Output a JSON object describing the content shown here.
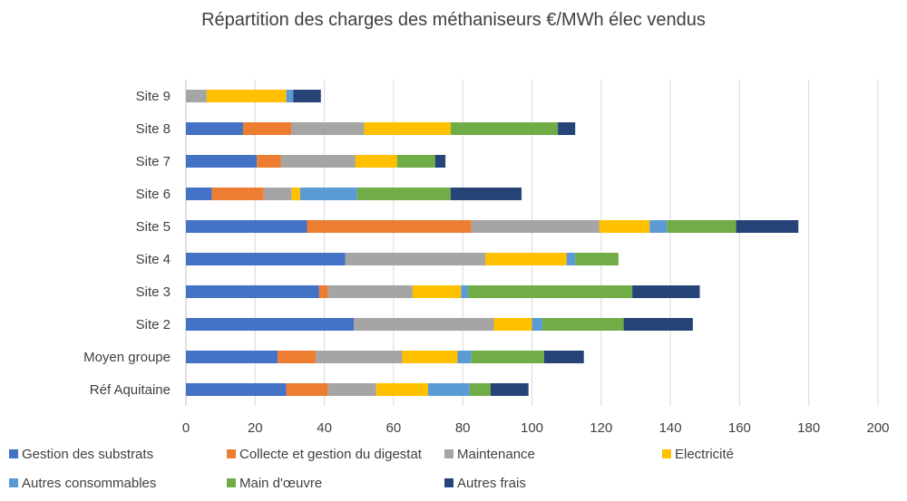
{
  "chart_data": {
    "type": "bar",
    "orientation": "horizontal",
    "stacked": true,
    "title": "Répartition des charges des méthaniseurs €/MWh élec vendus",
    "xlabel": "",
    "ylabel": "",
    "xlim": [
      0,
      200
    ],
    "xticks": [
      "0",
      "20",
      "40",
      "60",
      "80",
      "100",
      "120",
      "140",
      "160",
      "180",
      "200"
    ],
    "xtick_values": [
      0,
      20,
      40,
      60,
      80,
      100,
      120,
      140,
      160,
      180,
      200
    ],
    "grid": true,
    "legend_position": "bottom",
    "categories": [
      "Réf Aquitaine",
      "Moyen groupe",
      "Site 2",
      "Site 3",
      "Site 4",
      "Site 5",
      "Site 6",
      "Site 7",
      "Site 8",
      "Site 9"
    ],
    "series": [
      {
        "name": "Gestion des substrats",
        "color": "#4472c4",
        "values": [
          29,
          26.5,
          48.5,
          38.5,
          46,
          35,
          7.5,
          20.5,
          16.5,
          0
        ]
      },
      {
        "name": "Collecte et gestion du digestat",
        "color": "#ed7d31",
        "values": [
          12,
          11,
          0,
          2.5,
          0,
          47.5,
          15,
          7,
          14,
          0
        ]
      },
      {
        "name": "Maintenance",
        "color": "#a5a5a5",
        "values": [
          14,
          25,
          40.5,
          24.5,
          40.5,
          37,
          8,
          21.5,
          21,
          6
        ]
      },
      {
        "name": "Electricité",
        "color": "#ffc000",
        "values": [
          15,
          16,
          11,
          14,
          23.5,
          14.5,
          2.5,
          12,
          25,
          23
        ]
      },
      {
        "name": "Autres consommables",
        "color": "#5b9bd5",
        "values": [
          12,
          4,
          3,
          2,
          2.5,
          5,
          16.5,
          0,
          0,
          2
        ]
      },
      {
        "name": "Main d'œuvre",
        "color": "#70ad47",
        "values": [
          6,
          21,
          23.5,
          47.5,
          12.5,
          20,
          27,
          11,
          31,
          0
        ]
      },
      {
        "name": "Autres frais",
        "color": "#264478",
        "values": [
          11,
          11.5,
          20,
          19.5,
          0,
          18,
          20.5,
          3,
          5,
          8
        ]
      }
    ]
  }
}
